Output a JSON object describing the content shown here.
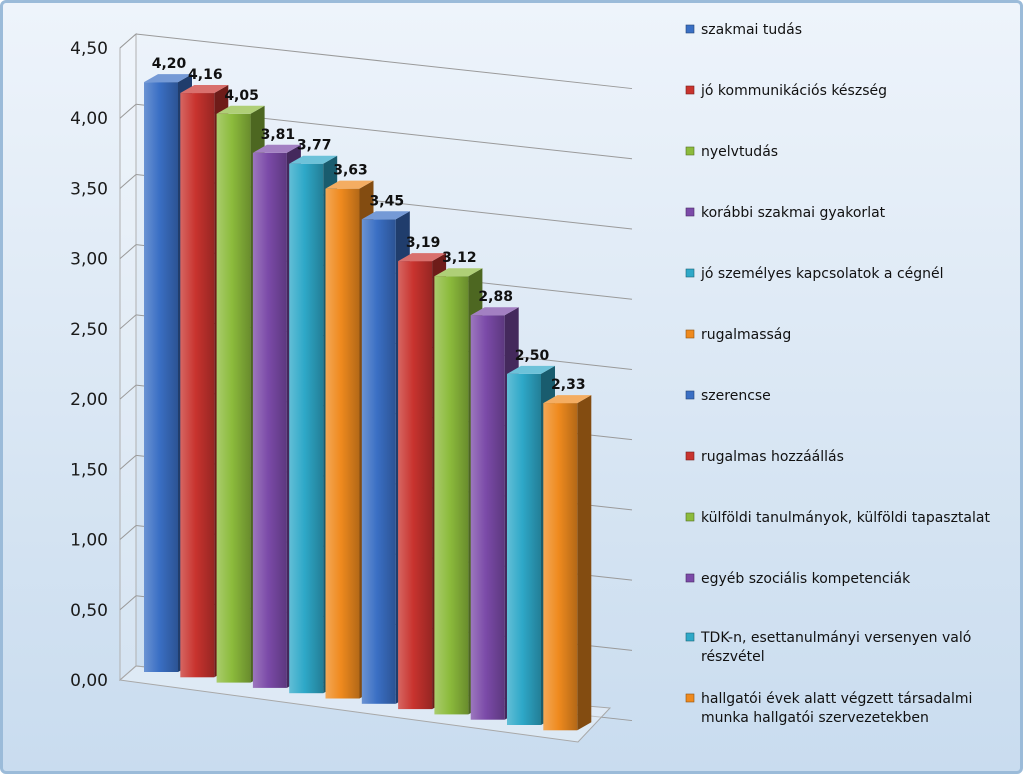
{
  "chart_data": {
    "type": "bar",
    "style": "3d-columns",
    "title": "",
    "xlabel": "",
    "ylabel": "",
    "ylim": [
      0,
      4.5
    ],
    "yticks": [
      "0,00",
      "0,50",
      "1,00",
      "1,50",
      "2,00",
      "2,50",
      "3,00",
      "3,50",
      "4,00",
      "4,50"
    ],
    "grid": true,
    "legend_position": "right",
    "categories": [
      "szakmai tudás",
      "jó kommunikációs készség",
      "nyelvtudás",
      "korábbi szakmai gyakorlat",
      "jó személyes kapcsolatok a cégnél",
      "rugalmasság",
      "szerencse",
      "rugalmas hozzáállás",
      "külföldi tanulmányok, külföldi tapasztalat",
      "egyéb szociális kompetenciák",
      "TDK-n, esettanulmányi versenyen való részvétel",
      "hallgatói évek alatt végzett társadalmi munka hallgatói szervezetekben"
    ],
    "values": [
      4.2,
      4.16,
      4.05,
      3.81,
      3.77,
      3.63,
      3.45,
      3.19,
      3.12,
      2.88,
      2.5,
      2.33
    ],
    "value_labels": [
      "4,20",
      "4,16",
      "4,05",
      "3,81",
      "3,77",
      "3,63",
      "3,45",
      "3,19",
      "3,12",
      "2,88",
      "2,50",
      "2,33"
    ],
    "legend_lines": [
      [
        "szakmai tudás"
      ],
      [
        "jó kommunikációs készség"
      ],
      [
        "nyelvtudás"
      ],
      [
        "korábbi szakmai gyakorlat"
      ],
      [
        "jó személyes kapcsolatok a cégnél"
      ],
      [
        "rugalmasság"
      ],
      [
        "szerencse"
      ],
      [
        "rugalmas hozzáállás"
      ],
      [
        "külföldi tanulmányok, külföldi tapasztalat"
      ],
      [
        "egyéb szociális kompetenciák"
      ],
      [
        "TDK-n, esettanulmányi versenyen való",
        "részvétel"
      ],
      [
        "hallgatói évek alatt végzett társadalmi",
        "munka hallgatói szervezetekben"
      ]
    ],
    "colors": [
      "#3a6fc4",
      "#c8332e",
      "#8cbb3c",
      "#7b4aa8",
      "#2ea8c8",
      "#ef8a1e",
      "#3a6fc4",
      "#c8332e",
      "#8cbb3c",
      "#7b4aa8",
      "#2ea8c8",
      "#ef8a1e"
    ]
  }
}
